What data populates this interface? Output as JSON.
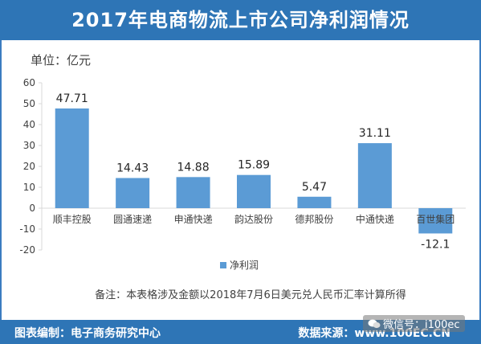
{
  "header": {
    "title": "2017年电商物流上市公司净利润情况"
  },
  "unit_label": "单位：亿元",
  "note": "备注：本表格涉及金额以2018年7月6日美元兑人民币汇率计算所得",
  "footer": {
    "left": "图表编制：电子商务研究中心",
    "right": "数据来源：www.100EC.CN"
  },
  "watermark": {
    "text": "微信号：i100ec"
  },
  "colors": {
    "bar": "#5b9bd5",
    "header": "#2e75b6",
    "axis": "#d9d9d9"
  },
  "chart_data": {
    "type": "bar",
    "title": "2017年电商物流上市公司净利润情况",
    "ylabel": "单位：亿元",
    "ylim": [
      -20,
      60
    ],
    "yticks": [
      -20,
      -10,
      0,
      10,
      20,
      30,
      40,
      50,
      60
    ],
    "categories": [
      "顺丰控股",
      "圆通速递",
      "申通快递",
      "韵达股份",
      "德邦股份",
      "中通快递",
      "百世集团"
    ],
    "series": [
      {
        "name": "净利润",
        "values": [
          47.71,
          14.43,
          14.88,
          15.89,
          5.47,
          31.11,
          -12.1
        ]
      }
    ],
    "data_labels": [
      "47.71",
      "14.43",
      "14.88",
      "15.89",
      "5.47",
      "31.11",
      "-12.1"
    ],
    "grid": false,
    "legend_position": "bottom"
  }
}
